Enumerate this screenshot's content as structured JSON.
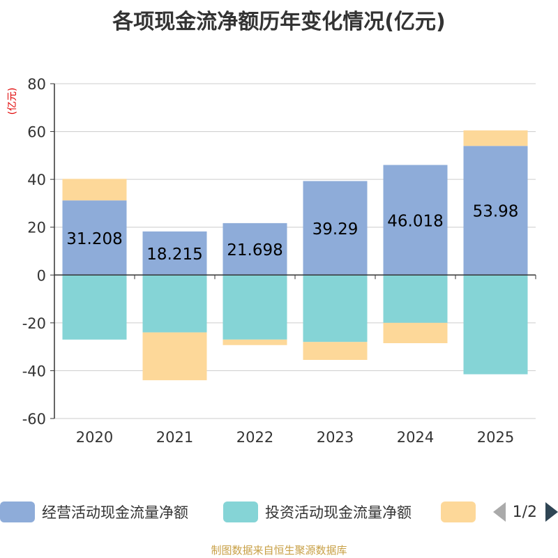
{
  "chart_data": {
    "type": "bar",
    "stacked": true,
    "title": "各项现金流净额历年变化情况(亿元)",
    "ylabel": "(亿元)",
    "xlabel": "",
    "ylim": [
      -60,
      80
    ],
    "yticks": [
      80,
      60,
      40,
      20,
      0,
      -20,
      -40,
      -60
    ],
    "categories": [
      "2020",
      "2021",
      "2022",
      "2023",
      "2024",
      "2025"
    ],
    "series": [
      {
        "name": "经营活动现金流量净额",
        "color": "#8eacd9",
        "values": [
          31.208,
          18.215,
          21.698,
          39.29,
          46.018,
          53.98
        ],
        "labels": [
          "31.208",
          "18.215",
          "21.698",
          "39.29",
          "46.018",
          "53.98"
        ]
      },
      {
        "name": "投资活动现金流量净额",
        "color": "#85d4d6",
        "values": [
          -27,
          -24,
          -27,
          -28,
          -20,
          -41.5
        ]
      },
      {
        "name": "",
        "color": "#fdd899",
        "values": [
          9,
          -20,
          -2.3,
          -7.5,
          -8.5,
          6.5
        ]
      }
    ],
    "legend_position": "bottom"
  },
  "legend": {
    "page": "1/2"
  },
  "footer": "制图数据来自恒生聚源数据库"
}
